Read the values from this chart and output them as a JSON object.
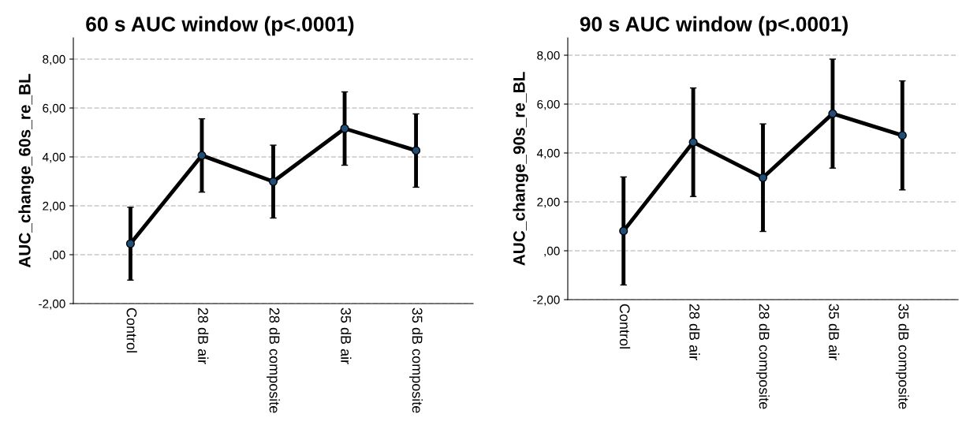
{
  "chart_data": [
    {
      "type": "line",
      "title": "60 s AUC window (p<.0001)",
      "ylabel": "AUC_change_60s_re_BL",
      "categories": [
        "Control",
        "28 dB air",
        "28 dB composite",
        "35 dB air",
        "35 dB composite"
      ],
      "series": [
        {
          "color": "#000000",
          "values": [
            0.45,
            4.06,
            2.99,
            5.16,
            4.26
          ],
          "errors": [
            1.49,
            1.5,
            1.49,
            1.5,
            1.5
          ]
        }
      ],
      "ylim": [
        -2,
        8.87
      ],
      "yticks": [
        {
          "value": -2,
          "label": "-2,00"
        },
        {
          "value": 0,
          "label": ",00"
        },
        {
          "value": 2,
          "label": "2,00"
        },
        {
          "value": 4,
          "label": "4,00"
        },
        {
          "value": 6,
          "label": "6,00"
        },
        {
          "value": 8,
          "label": "8,00"
        }
      ],
      "grid": "y",
      "marker": "circle",
      "line_style": "solid"
    },
    {
      "type": "line",
      "title": "90 s AUC window (p<.0001)",
      "ylabel": "AUC_change_90s_re_BL",
      "categories": [
        "Control",
        "28 dB air",
        "28 dB composite",
        "35 dB air",
        "35 dB composite"
      ],
      "series": [
        {
          "color": "#000000",
          "values": [
            0.81,
            4.44,
            2.99,
            5.61,
            4.72
          ],
          "errors": [
            2.21,
            2.22,
            2.2,
            2.23,
            2.23
          ]
        }
      ],
      "ylim": [
        -2,
        8.71
      ],
      "yticks": [
        {
          "value": -2,
          "label": "-2,00"
        },
        {
          "value": 0,
          "label": ",00"
        },
        {
          "value": 2,
          "label": "2,00"
        },
        {
          "value": 4,
          "label": "4,00"
        },
        {
          "value": 6,
          "label": "6,00"
        },
        {
          "value": 8,
          "label": "8,00"
        }
      ],
      "grid": "y",
      "marker": "circle",
      "line_style": "solid"
    }
  ]
}
